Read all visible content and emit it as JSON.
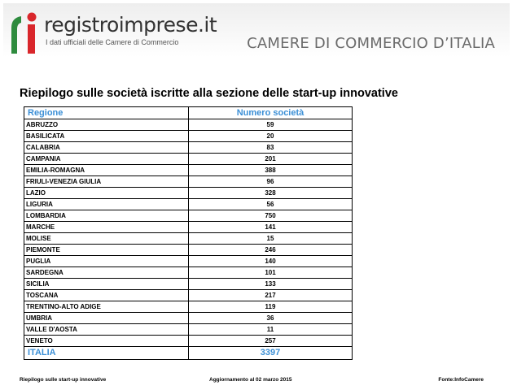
{
  "header": {
    "logo_name": "registroimprese.it",
    "logo_tagline": "I dati ufficiali delle Camere di Commercio",
    "logo_icon": "registroimprese-logo-icon",
    "chamber_title": "CAMERE DI COMMERCIO D’ITALIA"
  },
  "document": {
    "title": "Riepilogo sulle società iscritte alla sezione delle start-up innovative"
  },
  "table": {
    "headers": {
      "region": "Regione",
      "count": "Numero società"
    },
    "rows": [
      {
        "region": "ABRUZZO",
        "count": "59"
      },
      {
        "region": "BASILICATA",
        "count": "20"
      },
      {
        "region": "CALABRIA",
        "count": "83"
      },
      {
        "region": "CAMPANIA",
        "count": "201"
      },
      {
        "region": "EMILIA-ROMAGNA",
        "count": "388"
      },
      {
        "region": "FRIULI-VENEZIA GIULIA",
        "count": "96"
      },
      {
        "region": "LAZIO",
        "count": "328"
      },
      {
        "region": "LIGURIA",
        "count": "56"
      },
      {
        "region": "LOMBARDIA",
        "count": "750"
      },
      {
        "region": "MARCHE",
        "count": "141"
      },
      {
        "region": "MOLISE",
        "count": "15"
      },
      {
        "region": "PIEMONTE",
        "count": "246"
      },
      {
        "region": "PUGLIA",
        "count": "140"
      },
      {
        "region": "SARDEGNA",
        "count": "101"
      },
      {
        "region": "SICILIA",
        "count": "133"
      },
      {
        "region": "TOSCANA",
        "count": "217"
      },
      {
        "region": "TRENTINO-ALTO ADIGE",
        "count": "119"
      },
      {
        "region": "UMBRIA",
        "count": "36"
      },
      {
        "region": "VALLE D'AOSTA",
        "count": "11"
      },
      {
        "region": "VENETO",
        "count": "257"
      }
    ],
    "total": {
      "region": "ITALIA",
      "count": "3397"
    }
  },
  "footer": {
    "left": "Riepilogo sulle start-up innovative",
    "center": "Aggiornamento al 02 marzo 2015",
    "right": "Fonte:InfoCamere"
  },
  "colors": {
    "accent_blue": "#3b8fd6",
    "logo_green": "#2e8b3e",
    "logo_red": "#d9262b",
    "chamber_gray": "#6b6b6b"
  }
}
